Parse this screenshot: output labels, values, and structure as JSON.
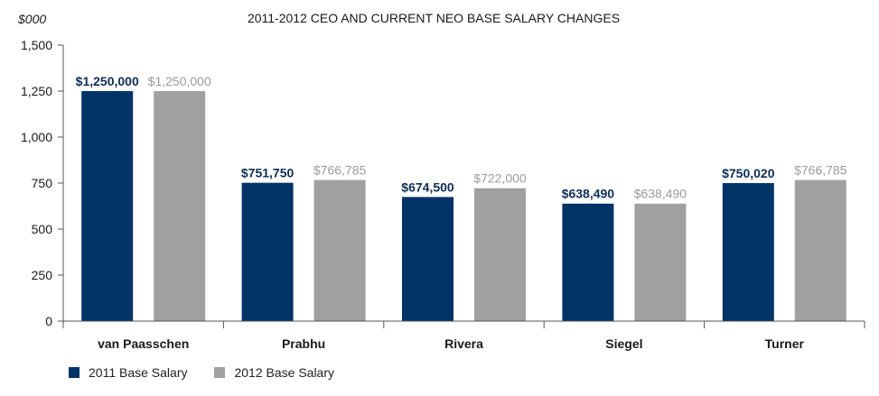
{
  "chart_data": {
    "type": "bar",
    "title": "2011-2012 CEO AND CURRENT NEO BASE SALARY CHANGES",
    "ylabel": "$000",
    "xlabel": "",
    "ylim": [
      0,
      1500
    ],
    "yticks": [
      0,
      250,
      500,
      750,
      1000,
      1250,
      1500
    ],
    "ytick_labels": [
      "0",
      "250",
      "500",
      "750",
      "1,000",
      "1,250",
      "1,500"
    ],
    "categories": [
      "van Paasschen",
      "Prabhu",
      "Rivera",
      "Siegel",
      "Turner"
    ],
    "series": [
      {
        "name": "2011 Base Salary",
        "color": "#003366",
        "label_color": "#0d2d57",
        "values": [
          1250,
          751.75,
          674.5,
          638.49,
          750.02
        ],
        "labels": [
          "$1,250,000",
          "$751,750",
          "$674,500",
          "$638,490",
          "$750,020"
        ]
      },
      {
        "name": "2012 Base Salary",
        "color": "#a0a0a0",
        "label_color": "#9b9b9b",
        "values": [
          1250,
          766.785,
          722,
          638.49,
          766.785
        ],
        "labels": [
          "$1,250,000",
          "$766,785",
          "$722,000",
          "$638,490",
          "$766,785"
        ]
      }
    ],
    "legend": "bottom-left",
    "grid": false
  }
}
